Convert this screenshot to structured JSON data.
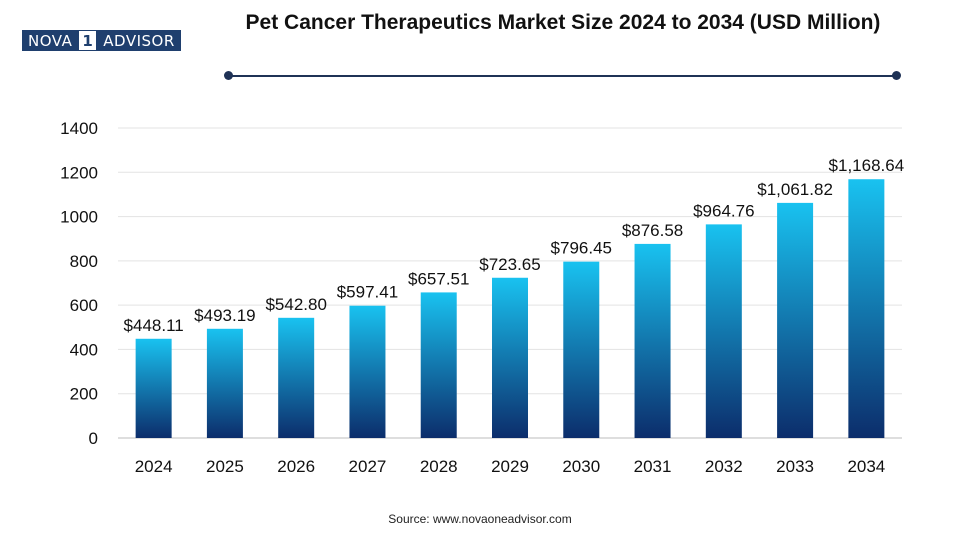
{
  "brand": {
    "logo_left": "NOVA",
    "logo_mid": "1",
    "logo_right": "ADVISOR"
  },
  "chart_data": {
    "type": "bar",
    "title": "Pet Cancer Therapeutics Market Size 2024 to 2034 (USD Million)",
    "categories": [
      "2024",
      "2025",
      "2026",
      "2027",
      "2028",
      "2029",
      "2030",
      "2031",
      "2032",
      "2033",
      "2034"
    ],
    "values": [
      448.11,
      493.19,
      542.8,
      597.41,
      657.51,
      723.65,
      796.45,
      876.58,
      964.76,
      1061.82,
      1168.64
    ],
    "data_labels": [
      "$448.11",
      "$493.19",
      "$542.80",
      "$597.41",
      "$657.51",
      "$723.65",
      "$796.45",
      "$876.58",
      "$964.76",
      "$1,061.82",
      "$1,168.64"
    ],
    "yticks": [
      0,
      200,
      400,
      600,
      800,
      1000,
      1200,
      1400
    ],
    "ylim": [
      0,
      1400
    ],
    "xlabel": "",
    "ylabel": "",
    "grid": true,
    "bar_gradient": {
      "top": "#19c2f0",
      "bottom": "#0c2d6b"
    }
  },
  "source": "Source: www.novaoneadvisor.com"
}
